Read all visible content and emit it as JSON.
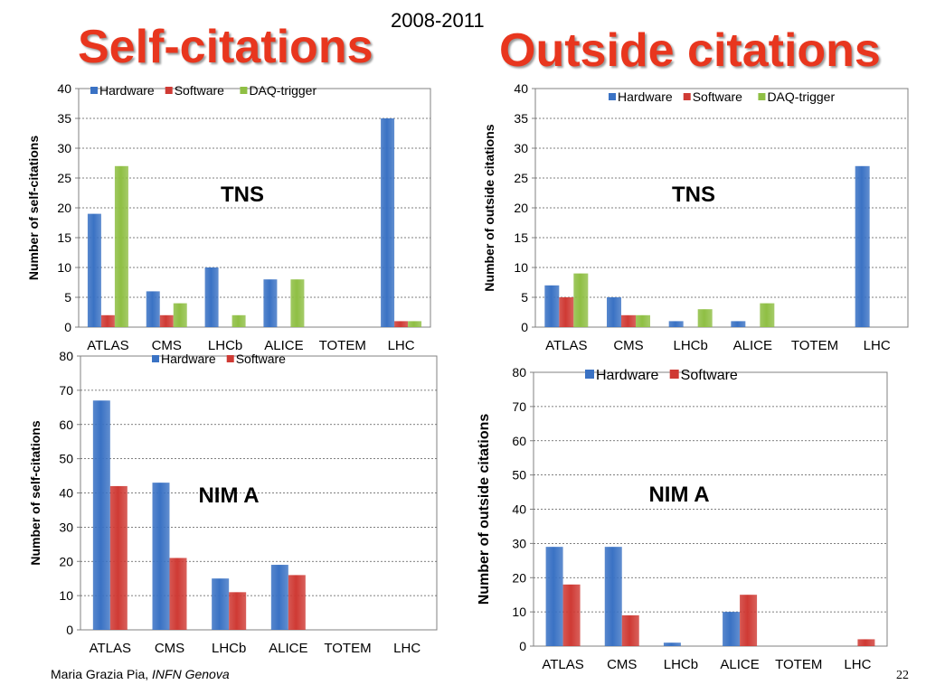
{
  "header": {
    "period": "2008-2011",
    "left_title": "Self-citations",
    "right_title": "Outside citations"
  },
  "footer": {
    "author": "Maria Grazia Pia, ",
    "affiliation": "INFN Genova",
    "page_number": "22"
  },
  "colors": {
    "Hardware": "#3a72c4",
    "Software": "#cf3a34",
    "DAQ-trigger": "#8fbf44"
  },
  "chart_data": [
    {
      "type": "bar",
      "title": "TNS",
      "ylabel": "Number of self-citations",
      "xlabel": "",
      "categories": [
        "ATLAS",
        "CMS",
        "LHCb",
        "ALICE",
        "TOTEM",
        "LHC"
      ],
      "series": [
        {
          "name": "Hardware",
          "values": [
            19,
            6,
            10,
            8,
            0,
            35
          ]
        },
        {
          "name": "Software",
          "values": [
            2,
            2,
            0,
            0,
            0,
            1
          ]
        },
        {
          "name": "DAQ-trigger",
          "values": [
            27,
            4,
            2,
            8,
            0,
            1
          ]
        }
      ],
      "ylim": [
        0,
        40
      ],
      "yticks": [
        "0",
        "5",
        "10",
        "15",
        "20",
        "25",
        "30",
        "35",
        "40"
      ],
      "grid": true,
      "legend": "top-left"
    },
    {
      "type": "bar",
      "title": "TNS",
      "ylabel": "Number of outside citations",
      "xlabel": "",
      "categories": [
        "ATLAS",
        "CMS",
        "LHCb",
        "ALICE",
        "TOTEM",
        "LHC"
      ],
      "series": [
        {
          "name": "Hardware",
          "values": [
            7,
            5,
            1,
            1,
            0,
            27
          ]
        },
        {
          "name": "Software",
          "values": [
            5,
            2,
            0,
            0,
            0,
            0
          ]
        },
        {
          "name": "DAQ-trigger",
          "values": [
            9,
            2,
            3,
            4,
            0,
            0
          ]
        }
      ],
      "ylim": [
        0,
        40
      ],
      "yticks": [
        "0",
        "5",
        "10",
        "15",
        "20",
        "25",
        "30",
        "35",
        "40"
      ],
      "grid": true,
      "legend": "top-right"
    },
    {
      "type": "bar",
      "title": "NIM A",
      "ylabel": "Number of self-citations",
      "xlabel": "",
      "categories": [
        "ATLAS",
        "CMS",
        "LHCb",
        "ALICE",
        "TOTEM",
        "LHC"
      ],
      "series": [
        {
          "name": "Hardware",
          "values": [
            67,
            43,
            15,
            19,
            0,
            0
          ]
        },
        {
          "name": "Software",
          "values": [
            42,
            21,
            11,
            16,
            0,
            0
          ]
        }
      ],
      "ylim": [
        0,
        80
      ],
      "yticks": [
        "0",
        "10",
        "20",
        "30",
        "40",
        "50",
        "60",
        "70",
        "80"
      ],
      "grid": true,
      "legend": "top-center"
    },
    {
      "type": "bar",
      "title": "NIM A",
      "ylabel": "Number of outside citations",
      "xlabel": "",
      "categories": [
        "ATLAS",
        "CMS",
        "LHCb",
        "ALICE",
        "TOTEM",
        "LHC"
      ],
      "series": [
        {
          "name": "Hardware",
          "values": [
            29,
            29,
            1,
            10,
            0,
            0
          ]
        },
        {
          "name": "Software",
          "values": [
            18,
            9,
            0,
            15,
            0,
            2
          ]
        }
      ],
      "ylim": [
        0,
        80
      ],
      "yticks": [
        "0",
        "10",
        "20",
        "30",
        "40",
        "50",
        "60",
        "70",
        "80"
      ],
      "grid": true,
      "legend": "top-center"
    }
  ]
}
